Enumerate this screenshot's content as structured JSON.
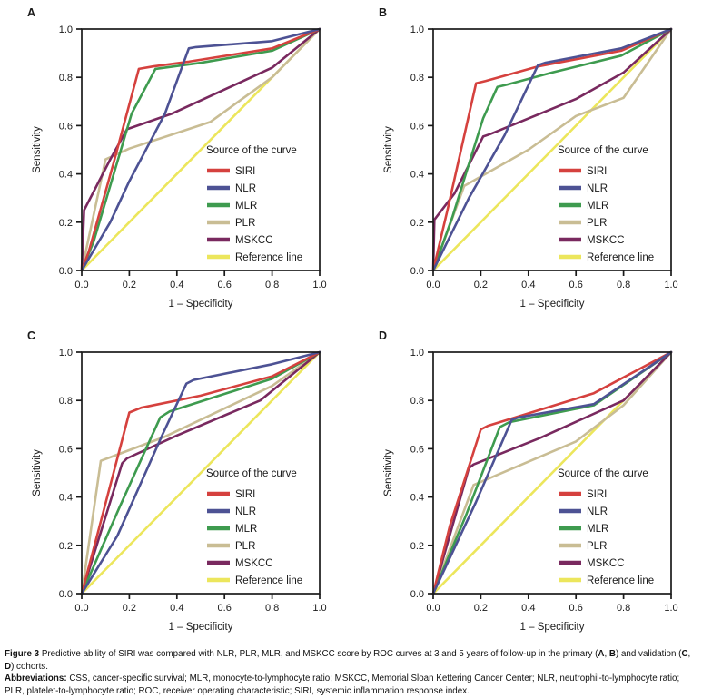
{
  "figure_label": "Figure 3",
  "caption_segments": [
    {
      "text": "Figure 3 ",
      "bold": true
    },
    {
      "text": "Predictive ability of SIRI was compared with NLR, PLR, MLR, and MSKCC score by ROC curves at 3 and 5 years of follow-up in the primary (",
      "bold": false
    },
    {
      "text": "A",
      "bold": true
    },
    {
      "text": ", ",
      "bold": false
    },
    {
      "text": "B",
      "bold": true
    },
    {
      "text": ") and validation (",
      "bold": false
    },
    {
      "text": "C",
      "bold": true
    },
    {
      "text": ", ",
      "bold": false
    },
    {
      "text": "D",
      "bold": true
    },
    {
      "text": ") cohorts.",
      "bold": false
    }
  ],
  "abbreviation_segments": [
    {
      "text": "Abbreviations: ",
      "bold": true
    },
    {
      "text": "CSS, cancer-specific survival; MLR, monocyte-to-lymphocyte ratio; MSKCC, Memorial Sloan Kettering Cancer Center; NLR, neutrophil-to-lymphocyte ratio; PLR, platelet-to-lymphocyte ratio; ROC, receiver operating characteristic; SIRI, systemic inflammation response index.",
      "bold": false
    }
  ],
  "colors": {
    "SIRI": "#d5413e",
    "NLR": "#4d5294",
    "MLR": "#3e9b4f",
    "PLR": "#c9bd94",
    "MSKCC": "#79295f",
    "Reference line": "#ece65c",
    "axis": "#1a1a1a",
    "background": "#ffffff"
  },
  "chart_data": [
    {
      "type": "line",
      "panel_label": "A",
      "xlabel": "1 – Specificity",
      "ylabel": "Sensitivity",
      "xlim": [
        0,
        1
      ],
      "ylim": [
        0,
        1
      ],
      "xticks": [
        0,
        0.2,
        0.4,
        0.6,
        0.8,
        1
      ],
      "yticks": [
        0,
        0.2,
        0.4,
        0.6,
        0.8,
        1
      ],
      "grid": false,
      "legend_title": "Source of the curve",
      "legend_position": "inside-right",
      "series": [
        {
          "name": "SIRI",
          "color": "#d5413e",
          "points": [
            [
              0,
              0
            ],
            [
              0.03,
              0.08
            ],
            [
              0.135,
              0.45
            ],
            [
              0.24,
              0.835
            ],
            [
              0.3,
              0.845
            ],
            [
              0.45,
              0.865
            ],
            [
              0.8,
              0.92
            ],
            [
              1,
              1
            ]
          ]
        },
        {
          "name": "NLR",
          "color": "#4d5294",
          "points": [
            [
              0,
              0
            ],
            [
              0.12,
              0.2
            ],
            [
              0.2,
              0.37
            ],
            [
              0.35,
              0.65
            ],
            [
              0.45,
              0.92
            ],
            [
              0.48,
              0.925
            ],
            [
              0.8,
              0.95
            ],
            [
              1,
              1
            ]
          ]
        },
        {
          "name": "MLR",
          "color": "#3e9b4f",
          "points": [
            [
              0,
              0
            ],
            [
              0.05,
              0.12
            ],
            [
              0.21,
              0.65
            ],
            [
              0.31,
              0.835
            ],
            [
              0.5,
              0.86
            ],
            [
              0.8,
              0.91
            ],
            [
              1,
              1
            ]
          ]
        },
        {
          "name": "PLR",
          "color": "#c9bd94",
          "points": [
            [
              0,
              0
            ],
            [
              0.1,
              0.46
            ],
            [
              0.2,
              0.505
            ],
            [
              0.54,
              0.615
            ],
            [
              0.8,
              0.8
            ],
            [
              1,
              1
            ]
          ]
        },
        {
          "name": "MSKCC",
          "color": "#79295f",
          "points": [
            [
              0,
              0
            ],
            [
              0.01,
              0.25
            ],
            [
              0.12,
              0.46
            ],
            [
              0.19,
              0.585
            ],
            [
              0.38,
              0.65
            ],
            [
              0.8,
              0.84
            ],
            [
              1,
              1
            ]
          ]
        },
        {
          "name": "Reference line",
          "color": "#ece65c",
          "points": [
            [
              0,
              0
            ],
            [
              1,
              1
            ]
          ]
        }
      ]
    },
    {
      "type": "line",
      "panel_label": "B",
      "xlabel": "1 – Specificity",
      "ylabel": "Sensitivity",
      "xlim": [
        0,
        1
      ],
      "ylim": [
        0,
        1
      ],
      "xticks": [
        0,
        0.2,
        0.4,
        0.6,
        0.8,
        1
      ],
      "yticks": [
        0,
        0.2,
        0.4,
        0.6,
        0.8,
        1
      ],
      "grid": false,
      "legend_title": "Source of the curve",
      "legend_position": "inside-right",
      "series": [
        {
          "name": "SIRI",
          "color": "#d5413e",
          "points": [
            [
              0,
              0
            ],
            [
              0.06,
              0.25
            ],
            [
              0.18,
              0.775
            ],
            [
              0.22,
              0.785
            ],
            [
              0.44,
              0.845
            ],
            [
              0.79,
              0.91
            ],
            [
              1,
              1
            ]
          ]
        },
        {
          "name": "NLR",
          "color": "#4d5294",
          "points": [
            [
              0,
              0
            ],
            [
              0.15,
              0.3
            ],
            [
              0.3,
              0.56
            ],
            [
              0.44,
              0.85
            ],
            [
              0.47,
              0.86
            ],
            [
              0.79,
              0.92
            ],
            [
              1,
              1
            ]
          ]
        },
        {
          "name": "MLR",
          "color": "#3e9b4f",
          "points": [
            [
              0,
              0
            ],
            [
              0.08,
              0.22
            ],
            [
              0.21,
              0.63
            ],
            [
              0.27,
              0.76
            ],
            [
              0.31,
              0.77
            ],
            [
              0.5,
              0.82
            ],
            [
              0.79,
              0.89
            ],
            [
              1,
              1
            ]
          ]
        },
        {
          "name": "PLR",
          "color": "#c9bd94",
          "points": [
            [
              0,
              0
            ],
            [
              0.13,
              0.35
            ],
            [
              0.4,
              0.5
            ],
            [
              0.6,
              0.64
            ],
            [
              0.8,
              0.715
            ],
            [
              1,
              1
            ]
          ]
        },
        {
          "name": "MSKCC",
          "color": "#79295f",
          "points": [
            [
              0,
              0
            ],
            [
              0.005,
              0.21
            ],
            [
              0.09,
              0.32
            ],
            [
              0.21,
              0.555
            ],
            [
              0.24,
              0.565
            ],
            [
              0.6,
              0.71
            ],
            [
              0.8,
              0.82
            ],
            [
              1,
              1
            ]
          ]
        },
        {
          "name": "Reference line",
          "color": "#ece65c",
          "points": [
            [
              0,
              0
            ],
            [
              1,
              1
            ]
          ]
        }
      ]
    },
    {
      "type": "line",
      "panel_label": "C",
      "xlabel": "1 – Specificity",
      "ylabel": "Sensitivity",
      "xlim": [
        0,
        1
      ],
      "ylim": [
        0,
        1
      ],
      "xticks": [
        0,
        0.2,
        0.4,
        0.6,
        0.8,
        1
      ],
      "yticks": [
        0,
        0.2,
        0.4,
        0.6,
        0.8,
        1
      ],
      "grid": false,
      "legend_title": "Source of the curve",
      "legend_position": "inside-right",
      "series": [
        {
          "name": "SIRI",
          "color": "#d5413e",
          "points": [
            [
              0,
              0
            ],
            [
              0.07,
              0.26
            ],
            [
              0.2,
              0.75
            ],
            [
              0.25,
              0.77
            ],
            [
              0.5,
              0.82
            ],
            [
              0.8,
              0.9
            ],
            [
              1,
              1
            ]
          ]
        },
        {
          "name": "NLR",
          "color": "#4d5294",
          "points": [
            [
              0,
              0
            ],
            [
              0.15,
              0.24
            ],
            [
              0.34,
              0.66
            ],
            [
              0.44,
              0.87
            ],
            [
              0.47,
              0.885
            ],
            [
              0.8,
              0.95
            ],
            [
              1,
              1
            ]
          ]
        },
        {
          "name": "MLR",
          "color": "#3e9b4f",
          "points": [
            [
              0,
              0
            ],
            [
              0.16,
              0.36
            ],
            [
              0.33,
              0.73
            ],
            [
              0.37,
              0.755
            ],
            [
              0.8,
              0.89
            ],
            [
              1,
              1
            ]
          ]
        },
        {
          "name": "PLR",
          "color": "#c9bd94",
          "points": [
            [
              0,
              0
            ],
            [
              0.08,
              0.55
            ],
            [
              0.35,
              0.65
            ],
            [
              0.8,
              0.86
            ],
            [
              1,
              1
            ]
          ]
        },
        {
          "name": "MSKCC",
          "color": "#79295f",
          "points": [
            [
              0,
              0
            ],
            [
              0.17,
              0.54
            ],
            [
              0.19,
              0.56
            ],
            [
              0.4,
              0.655
            ],
            [
              0.75,
              0.8
            ],
            [
              1,
              1
            ]
          ]
        },
        {
          "name": "Reference line",
          "color": "#ece65c",
          "points": [
            [
              0,
              0
            ],
            [
              1,
              1
            ]
          ]
        }
      ]
    },
    {
      "type": "line",
      "panel_label": "D",
      "xlabel": "1 – Specificity",
      "ylabel": "Sensitivity",
      "xlim": [
        0,
        1
      ],
      "ylim": [
        0,
        1
      ],
      "xticks": [
        0,
        0.2,
        0.4,
        0.6,
        0.8,
        1
      ],
      "yticks": [
        0,
        0.2,
        0.4,
        0.6,
        0.8,
        1
      ],
      "grid": false,
      "legend_title": "Source of the curve",
      "legend_position": "inside-right",
      "series": [
        {
          "name": "SIRI",
          "color": "#d5413e",
          "points": [
            [
              0,
              0
            ],
            [
              0.07,
              0.28
            ],
            [
              0.2,
              0.68
            ],
            [
              0.23,
              0.695
            ],
            [
              0.675,
              0.83
            ],
            [
              1,
              1
            ]
          ]
        },
        {
          "name": "NLR",
          "color": "#4d5294",
          "points": [
            [
              0,
              0
            ],
            [
              0.18,
              0.38
            ],
            [
              0.33,
              0.72
            ],
            [
              0.36,
              0.73
            ],
            [
              0.675,
              0.785
            ],
            [
              1,
              1
            ]
          ]
        },
        {
          "name": "MLR",
          "color": "#3e9b4f",
          "points": [
            [
              0,
              0
            ],
            [
              0.14,
              0.33
            ],
            [
              0.28,
              0.69
            ],
            [
              0.32,
              0.71
            ],
            [
              0.675,
              0.78
            ],
            [
              1,
              1
            ]
          ]
        },
        {
          "name": "PLR",
          "color": "#c9bd94",
          "points": [
            [
              0,
              0
            ],
            [
              0.17,
              0.45
            ],
            [
              0.6,
              0.63
            ],
            [
              0.8,
              0.78
            ],
            [
              1,
              1
            ]
          ]
        },
        {
          "name": "MSKCC",
          "color": "#79295f",
          "points": [
            [
              0,
              0
            ],
            [
              0.15,
              0.52
            ],
            [
              0.17,
              0.535
            ],
            [
              0.45,
              0.645
            ],
            [
              0.8,
              0.8
            ],
            [
              1,
              1
            ]
          ]
        },
        {
          "name": "Reference line",
          "color": "#ece65c",
          "points": [
            [
              0,
              0
            ],
            [
              1,
              1
            ]
          ]
        }
      ]
    }
  ]
}
